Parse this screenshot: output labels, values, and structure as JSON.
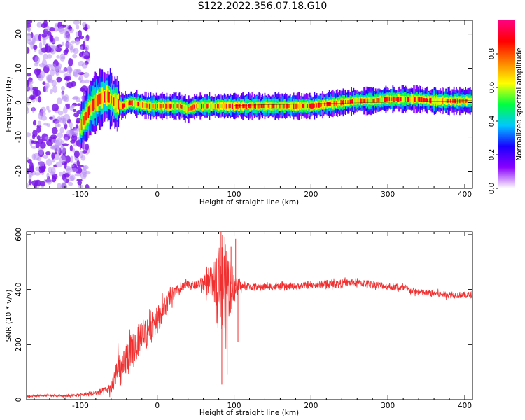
{
  "title": "S122.2022.356.07.18.G10",
  "chart_data": [
    {
      "type": "heatmap",
      "xlabel": "Height of straight line (km)",
      "ylabel": "Frequency (Hz)",
      "xlim": [
        -170,
        410
      ],
      "ylim": [
        -25,
        24
      ],
      "xticks": [
        -100,
        0,
        100,
        200,
        300,
        400
      ],
      "yticks": [
        -20,
        -10,
        0,
        10,
        20
      ],
      "colorbar": {
        "label": "Normalized spectral amplitude",
        "range": [
          0,
          1
        ],
        "ticks": [
          "0.0",
          "0.2",
          "0.4",
          "0.6",
          "0.8"
        ],
        "colormap": [
          "#ffffff",
          "#8a00ff",
          "#1a00ff",
          "#00c8ff",
          "#00ff40",
          "#ffff00",
          "#ff8000",
          "#ff0000",
          "#ff0080"
        ]
      },
      "ridge": {
        "x": [
          -100,
          -85,
          -75,
          -65,
          -55,
          -45,
          -35,
          -25,
          -10,
          0,
          20,
          30,
          40,
          50,
          60,
          80,
          100,
          120,
          140,
          160,
          180,
          200,
          220,
          240,
          260,
          280,
          300,
          320,
          340,
          360,
          380,
          400,
          410
        ],
        "freq": [
          -7,
          -1,
          1,
          2,
          0,
          -1,
          0,
          -0.5,
          -1,
          -1,
          -1,
          -1,
          -2,
          -1,
          -1,
          -1,
          -1,
          -1,
          -1,
          -1,
          -1,
          -1,
          -0.5,
          0,
          0.5,
          0.5,
          1,
          1,
          1,
          0.5,
          0.5,
          0.5,
          0.5
        ]
      },
      "noise_region": {
        "x_range": [
          -170,
          -90
        ],
        "freq_range": [
          -25,
          24
        ]
      }
    },
    {
      "type": "line",
      "xlabel": "Height of straight line (km)",
      "ylabel": "SNR (10 * v/v)",
      "xlim": [
        -170,
        410
      ],
      "ylim": [
        0,
        610
      ],
      "xticks": [
        -100,
        0,
        100,
        200,
        300,
        400
      ],
      "yticks": [
        0,
        200,
        400,
        600
      ],
      "series": [
        {
          "color": "#f03030",
          "x": [
            -170,
            -150,
            -130,
            -110,
            -90,
            -80,
            -70,
            -60,
            -55,
            -50,
            -45,
            -40,
            -35,
            -30,
            -25,
            -20,
            -15,
            -10,
            -5,
            0,
            10,
            20,
            30,
            40,
            50,
            60,
            70,
            75,
            80,
            85,
            90,
            95,
            100,
            110,
            130,
            150,
            170,
            200,
            230,
            250,
            280,
            300,
            320,
            340,
            360,
            380,
            410
          ],
          "y": [
            12,
            15,
            15,
            15,
            20,
            25,
            30,
            40,
            80,
            120,
            100,
            160,
            150,
            190,
            210,
            250,
            240,
            270,
            290,
            290,
            340,
            380,
            400,
            420,
            415,
            420,
            425,
            430,
            440,
            420,
            410,
            420,
            415,
            410,
            410,
            410,
            410,
            415,
            420,
            425,
            420,
            410,
            405,
            390,
            385,
            380,
            380
          ],
          "spread": [
            4,
            4,
            4,
            5,
            8,
            10,
            14,
            20,
            60,
            60,
            60,
            70,
            70,
            70,
            60,
            60,
            60,
            60,
            60,
            50,
            40,
            30,
            20,
            15,
            15,
            30,
            60,
            80,
            120,
            160,
            150,
            120,
            40,
            15,
            12,
            12,
            12,
            12,
            14,
            14,
            14,
            12,
            12,
            12,
            12,
            12,
            12
          ],
          "spikes": [
            {
              "x": 83,
              "y": 610
            },
            {
              "x": 84,
              "y": 55
            },
            {
              "x": 88,
              "y": 590
            },
            {
              "x": 91,
              "y": 90
            },
            {
              "x": 96,
              "y": 555
            },
            {
              "x": 102,
              "y": 585
            },
            {
              "x": 105,
              "y": 210
            }
          ]
        }
      ]
    }
  ]
}
